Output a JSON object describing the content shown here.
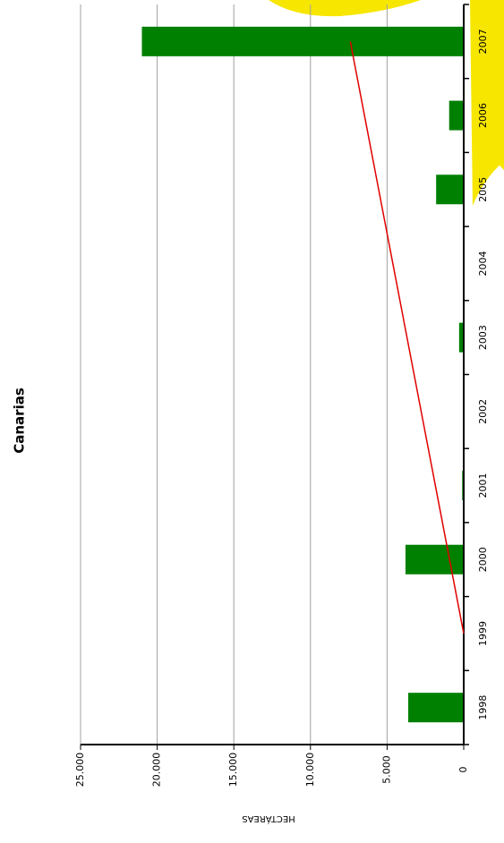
{
  "chart_data": {
    "type": "bar",
    "title": "Canarias",
    "y_label": "HECTÁREAS",
    "categories": [
      "1998",
      "1999",
      "2000",
      "2001",
      "2002",
      "2003",
      "2004",
      "2005",
      "2006",
      "2007"
    ],
    "values": [
      3620,
      0,
      3800,
      100,
      0,
      300,
      0,
      1800,
      950,
      21000
    ],
    "color": "#008000",
    "trendline": {
      "color": "#e00000",
      "values": [
        null,
        0,
        925,
        1850,
        2775,
        3700,
        4625,
        5550,
        6475,
        7400
      ]
    },
    "ylim": [
      0,
      25000
    ],
    "yticks": [
      0,
      {
        "value": 5000,
        "label": "5.000"
      },
      {
        "value": 10000,
        "label": "10.000"
      },
      {
        "value": 15000,
        "label": "15.000"
      },
      {
        "value": 20000,
        "label": "20.000"
      },
      {
        "value": 25000,
        "label": "25.000"
      }
    ],
    "grid": true
  }
}
